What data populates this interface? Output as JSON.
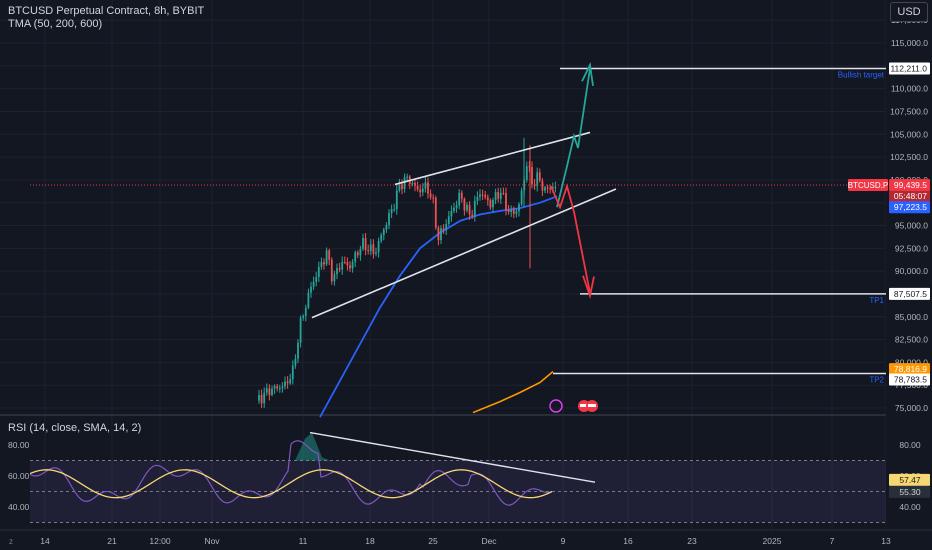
{
  "header": {
    "symbol_line": "BTCUSD Perpetual Contract, 8h, BYBIT",
    "indicator_line": "TMA (50, 200, 600)",
    "currency_button": "USD"
  },
  "rsi": {
    "label": "RSI (14, close, SMA, 14, 2)",
    "rsi_value": "57.47",
    "sma_value": "55.30",
    "bands": [
      70,
      50,
      30
    ]
  },
  "chart_data": [
    {
      "type": "candlestick",
      "title": "BTCUSD Perpetual Contract, 8h, BYBIT",
      "ylim": [
        74000,
        120000
      ],
      "ticks": [
        {
          "value": 75000,
          "label": "75,000.0"
        },
        {
          "value": 77500,
          "label": "77,500.0"
        },
        {
          "value": 80000,
          "label": "80,000.0"
        },
        {
          "value": 82500,
          "label": "82,500.0"
        },
        {
          "value": 85000,
          "label": "85,000.0"
        },
        {
          "value": 87500,
          "label": "87,500.0"
        },
        {
          "value": 90000,
          "label": "90,000.0"
        },
        {
          "value": 92500,
          "label": "92,500.0"
        },
        {
          "value": 95000,
          "label": "95,000.0"
        },
        {
          "value": 97500,
          "label": "97,500.0"
        },
        {
          "value": 100000,
          "label": "100,000.0"
        },
        {
          "value": 102500,
          "label": "102,500.0"
        },
        {
          "value": 105000,
          "label": "105,000.0"
        },
        {
          "value": 107500,
          "label": "107,500.0"
        },
        {
          "value": 110000,
          "label": "110,000.0"
        },
        {
          "value": 112500,
          "label": "112,500.0"
        },
        {
          "value": 115000,
          "label": "115,000.0"
        },
        {
          "value": 117500,
          "label": "117,500.0"
        }
      ],
      "x_labels": [
        "14",
        "21",
        "12:00",
        "Nov",
        "11",
        "18",
        "25",
        "Dec",
        "9",
        "16",
        "23",
        "2025",
        "7",
        "13"
      ],
      "price_tags": [
        {
          "name": "last-price",
          "label": "BTCUSD.P",
          "value": "99,439.5",
          "countdown": "05:48:07",
          "color": "#f23645"
        },
        {
          "name": "ma-blue",
          "value": "97,223.5",
          "color": "#2962ff"
        },
        {
          "name": "bullish-target",
          "value": "112,211.0",
          "color": "#ffffff"
        },
        {
          "name": "tp1",
          "value": "87,507.5",
          "color": "#ffffff"
        },
        {
          "name": "ma-orange",
          "value": "78,816.9",
          "color": "#ff9800"
        },
        {
          "name": "tp2",
          "value": "78,783.5",
          "color": "#ffffff"
        }
      ],
      "annotations": [
        {
          "text": "Bullish target",
          "value": 112211
        },
        {
          "text": "TP1",
          "value": 87507.5
        },
        {
          "text": "TP2",
          "value": 78783.5
        }
      ],
      "colors": {
        "up": "#26a69a",
        "down": "#ef5350",
        "ma_fast": "#2962ff",
        "ma_slow": "#ff9800",
        "bull_path": "#26a69a",
        "bear_path": "#f23645"
      }
    },
    {
      "type": "line",
      "title": "RSI (14, close, SMA, 14, 2)",
      "ylim": [
        28,
        92
      ],
      "ticks": [
        {
          "value": 80,
          "label": "80.00"
        },
        {
          "value": 60,
          "label": "60.00"
        },
        {
          "value": 40,
          "label": "40.00"
        }
      ]
    }
  ]
}
